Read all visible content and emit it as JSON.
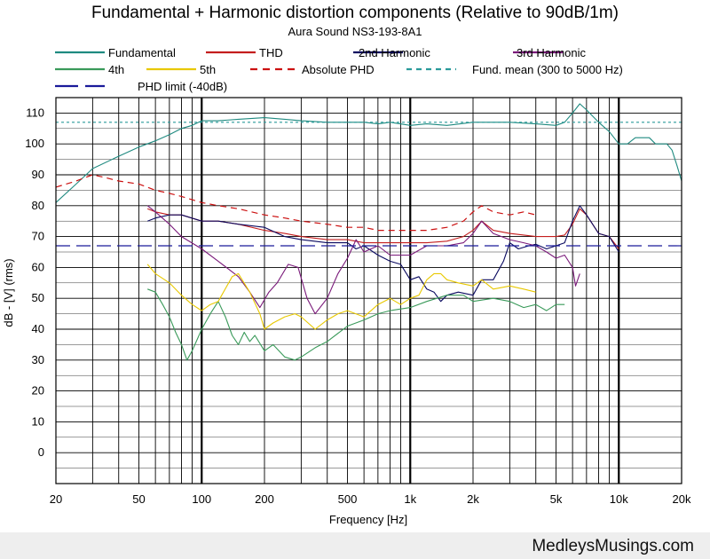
{
  "chart_data": {
    "type": "line",
    "title": "Fundamental + Harmonic distortion components (Relative to 90dB/1m)",
    "subtitle": "Aura Sound NS3-193-8A1",
    "xlabel": "Frequency [Hz]",
    "ylabel": "dB - [V]  (rms)",
    "x_scale": "log",
    "xlim": [
      20,
      20000
    ],
    "ylim": [
      -10,
      115
    ],
    "x_ticks": [
      {
        "value": 20,
        "label": "20"
      },
      {
        "value": 50,
        "label": "50"
      },
      {
        "value": 100,
        "label": "100"
      },
      {
        "value": 200,
        "label": "200"
      },
      {
        "value": 500,
        "label": "500"
      },
      {
        "value": 1000,
        "label": "1k"
      },
      {
        "value": 2000,
        "label": "2k"
      },
      {
        "value": 5000,
        "label": "5k"
      },
      {
        "value": 10000,
        "label": "10k"
      },
      {
        "value": 20000,
        "label": "20k"
      }
    ],
    "y_ticks": [
      {
        "value": 110,
        "label": "110"
      },
      {
        "value": 100,
        "label": "100"
      },
      {
        "value": 90,
        "label": "90"
      },
      {
        "value": 80,
        "label": "80"
      },
      {
        "value": 70,
        "label": "70"
      },
      {
        "value": 60,
        "label": "60"
      },
      {
        "value": 50,
        "label": "50"
      },
      {
        "value": 40,
        "label": "40"
      },
      {
        "value": 30,
        "label": "30"
      },
      {
        "value": 20,
        "label": "20"
      },
      {
        "value": 10,
        "label": "10"
      },
      {
        "value": 0,
        "label": "0"
      }
    ],
    "grid": true,
    "legend_position": "top",
    "series": [
      {
        "name": "Fundamental",
        "color": "#1f8a80",
        "style": "solid",
        "points": [
          [
            20,
            81
          ],
          [
            25,
            87
          ],
          [
            30,
            92
          ],
          [
            40,
            96
          ],
          [
            50,
            99
          ],
          [
            60,
            101
          ],
          [
            70,
            103
          ],
          [
            80,
            105
          ],
          [
            90,
            106
          ],
          [
            100,
            107.5
          ],
          [
            120,
            107.5
          ],
          [
            150,
            108
          ],
          [
            200,
            108.5
          ],
          [
            250,
            108
          ],
          [
            300,
            107.5
          ],
          [
            400,
            107
          ],
          [
            500,
            107
          ],
          [
            600,
            107
          ],
          [
            700,
            106.5
          ],
          [
            800,
            107
          ],
          [
            1000,
            106
          ],
          [
            1200,
            106.5
          ],
          [
            1500,
            106
          ],
          [
            2000,
            107
          ],
          [
            3000,
            107
          ],
          [
            4000,
            106.5
          ],
          [
            5000,
            106
          ],
          [
            5500,
            107
          ],
          [
            6000,
            110
          ],
          [
            6500,
            113
          ],
          [
            7000,
            111
          ],
          [
            8000,
            107
          ],
          [
            9000,
            104
          ],
          [
            10000,
            100
          ],
          [
            11000,
            100
          ],
          [
            12000,
            102
          ],
          [
            14000,
            102
          ],
          [
            15000,
            100
          ],
          [
            17000,
            100
          ],
          [
            18000,
            98
          ],
          [
            19000,
            93
          ],
          [
            20000,
            88
          ]
        ]
      },
      {
        "name": "THD",
        "color": "#c41e1e",
        "style": "solid",
        "points": [
          [
            55,
            79
          ],
          [
            60,
            78
          ],
          [
            70,
            77
          ],
          [
            80,
            77
          ],
          [
            100,
            75
          ],
          [
            120,
            75
          ],
          [
            150,
            74
          ],
          [
            200,
            72
          ],
          [
            250,
            71
          ],
          [
            300,
            70
          ],
          [
            400,
            69
          ],
          [
            500,
            69
          ],
          [
            600,
            68
          ],
          [
            800,
            68
          ],
          [
            1000,
            68
          ],
          [
            1200,
            68
          ],
          [
            1500,
            68.5
          ],
          [
            1800,
            70
          ],
          [
            2000,
            72
          ],
          [
            2200,
            75
          ],
          [
            2500,
            72
          ],
          [
            3000,
            71
          ],
          [
            4000,
            70
          ],
          [
            5000,
            70
          ],
          [
            5500,
            70.5
          ],
          [
            6000,
            74
          ],
          [
            6500,
            79
          ],
          [
            7000,
            77
          ],
          [
            8000,
            71
          ],
          [
            9000,
            70
          ],
          [
            10000,
            66
          ]
        ]
      },
      {
        "name": "2nd Harmonic",
        "color": "#0a0a60",
        "style": "solid",
        "points": [
          [
            55,
            75
          ],
          [
            60,
            76
          ],
          [
            70,
            77
          ],
          [
            80,
            77
          ],
          [
            100,
            75
          ],
          [
            120,
            75
          ],
          [
            150,
            74
          ],
          [
            200,
            73
          ],
          [
            250,
            70
          ],
          [
            300,
            69
          ],
          [
            400,
            68
          ],
          [
            500,
            68
          ],
          [
            550,
            66
          ],
          [
            600,
            67
          ],
          [
            700,
            64
          ],
          [
            800,
            62
          ],
          [
            900,
            61
          ],
          [
            1000,
            56
          ],
          [
            1100,
            57
          ],
          [
            1200,
            53
          ],
          [
            1300,
            52
          ],
          [
            1400,
            49
          ],
          [
            1500,
            51
          ],
          [
            1700,
            52
          ],
          [
            2000,
            51
          ],
          [
            2200,
            56
          ],
          [
            2500,
            56
          ],
          [
            2800,
            62
          ],
          [
            3000,
            68
          ],
          [
            3300,
            66
          ],
          [
            3700,
            67
          ],
          [
            4000,
            67.5
          ],
          [
            4500,
            66
          ],
          [
            5000,
            67
          ],
          [
            5500,
            68
          ],
          [
            6000,
            75
          ],
          [
            6500,
            80
          ],
          [
            7000,
            77
          ],
          [
            8000,
            71
          ],
          [
            9000,
            70
          ],
          [
            10000,
            65
          ]
        ]
      },
      {
        "name": "3rd Harmonic",
        "color": "#7a1a7a",
        "style": "solid",
        "points": [
          [
            55,
            80
          ],
          [
            60,
            78
          ],
          [
            70,
            74
          ],
          [
            80,
            70
          ],
          [
            100,
            66
          ],
          [
            120,
            62
          ],
          [
            150,
            57
          ],
          [
            170,
            52
          ],
          [
            190,
            47
          ],
          [
            210,
            52
          ],
          [
            230,
            55
          ],
          [
            260,
            61
          ],
          [
            290,
            60
          ],
          [
            320,
            50
          ],
          [
            350,
            45
          ],
          [
            400,
            50
          ],
          [
            450,
            58
          ],
          [
            500,
            63
          ],
          [
            550,
            69
          ],
          [
            600,
            65
          ],
          [
            700,
            67
          ],
          [
            800,
            64
          ],
          [
            1000,
            64
          ],
          [
            1200,
            67
          ],
          [
            1500,
            67
          ],
          [
            1800,
            68
          ],
          [
            2000,
            71
          ],
          [
            2200,
            75
          ],
          [
            2500,
            71
          ],
          [
            3000,
            69
          ],
          [
            3500,
            68
          ],
          [
            4000,
            67
          ],
          [
            4500,
            65
          ],
          [
            5000,
            63
          ],
          [
            5500,
            64
          ],
          [
            6000,
            60
          ],
          [
            6200,
            54
          ],
          [
            6500,
            58
          ]
        ]
      },
      {
        "name": "4th",
        "color": "#3a9a5a",
        "style": "solid",
        "points": [
          [
            55,
            53
          ],
          [
            60,
            52
          ],
          [
            65,
            48
          ],
          [
            70,
            44
          ],
          [
            75,
            39
          ],
          [
            80,
            35
          ],
          [
            85,
            30
          ],
          [
            90,
            33
          ],
          [
            100,
            40
          ],
          [
            110,
            45
          ],
          [
            120,
            49
          ],
          [
            130,
            44
          ],
          [
            140,
            38
          ],
          [
            150,
            35
          ],
          [
            160,
            39
          ],
          [
            170,
            36
          ],
          [
            180,
            38
          ],
          [
            200,
            33
          ],
          [
            220,
            35
          ],
          [
            250,
            31
          ],
          [
            280,
            30
          ],
          [
            300,
            31
          ],
          [
            350,
            34
          ],
          [
            400,
            36
          ],
          [
            500,
            41
          ],
          [
            600,
            43
          ],
          [
            700,
            45
          ],
          [
            800,
            46
          ],
          [
            1000,
            47
          ],
          [
            1200,
            49
          ],
          [
            1500,
            51
          ],
          [
            1800,
            51
          ],
          [
            2000,
            49
          ],
          [
            2500,
            50
          ],
          [
            3000,
            49
          ],
          [
            3500,
            47
          ],
          [
            4000,
            48
          ],
          [
            4500,
            46
          ],
          [
            5000,
            48
          ],
          [
            5500,
            48
          ]
        ]
      },
      {
        "name": "5th",
        "color": "#e8c800",
        "style": "solid",
        "points": [
          [
            55,
            61
          ],
          [
            60,
            58
          ],
          [
            70,
            55
          ],
          [
            80,
            51
          ],
          [
            90,
            48
          ],
          [
            100,
            46
          ],
          [
            110,
            48
          ],
          [
            120,
            49
          ],
          [
            140,
            57
          ],
          [
            150,
            58
          ],
          [
            170,
            52
          ],
          [
            190,
            45
          ],
          [
            200,
            40
          ],
          [
            220,
            42
          ],
          [
            250,
            44
          ],
          [
            280,
            45
          ],
          [
            300,
            44
          ],
          [
            350,
            40
          ],
          [
            400,
            43
          ],
          [
            450,
            45
          ],
          [
            500,
            46
          ],
          [
            600,
            44
          ],
          [
            700,
            48
          ],
          [
            800,
            50
          ],
          [
            900,
            48
          ],
          [
            1000,
            50
          ],
          [
            1100,
            51
          ],
          [
            1200,
            56
          ],
          [
            1300,
            58
          ],
          [
            1400,
            58
          ],
          [
            1500,
            56
          ],
          [
            1700,
            55
          ],
          [
            2000,
            54
          ],
          [
            2200,
            56
          ],
          [
            2500,
            53
          ],
          [
            3000,
            54
          ],
          [
            3500,
            53
          ],
          [
            4000,
            52
          ]
        ]
      },
      {
        "name": "Absolute PHD",
        "color": "#cc1111",
        "style": "dashed",
        "points": [
          [
            20,
            86
          ],
          [
            25,
            88
          ],
          [
            30,
            90
          ],
          [
            35,
            89
          ],
          [
            40,
            88
          ],
          [
            50,
            87
          ],
          [
            60,
            85
          ],
          [
            70,
            84
          ],
          [
            80,
            83
          ],
          [
            100,
            81
          ],
          [
            120,
            80
          ],
          [
            150,
            79
          ],
          [
            200,
            77
          ],
          [
            250,
            76
          ],
          [
            300,
            75
          ],
          [
            400,
            74
          ],
          [
            500,
            73
          ],
          [
            600,
            73
          ],
          [
            700,
            72
          ],
          [
            800,
            72
          ],
          [
            1000,
            72
          ],
          [
            1200,
            72
          ],
          [
            1500,
            73
          ],
          [
            1800,
            75
          ],
          [
            2000,
            78
          ],
          [
            2200,
            80
          ],
          [
            2500,
            78
          ],
          [
            3000,
            77
          ],
          [
            3500,
            78
          ],
          [
            4000,
            77
          ]
        ]
      },
      {
        "name": "Fund. mean (300 to 5000 Hz)",
        "color": "#2a9a9a",
        "style": "dotted",
        "points": [
          [
            20,
            107
          ],
          [
            20000,
            107
          ]
        ]
      },
      {
        "name": "PHD limit (-40dB)",
        "color": "#1a1a9a",
        "style": "longdash",
        "points": [
          [
            20,
            67
          ],
          [
            20000,
            67
          ]
        ]
      }
    ]
  },
  "footer": {
    "watermark": "MedleysMusings.com"
  }
}
